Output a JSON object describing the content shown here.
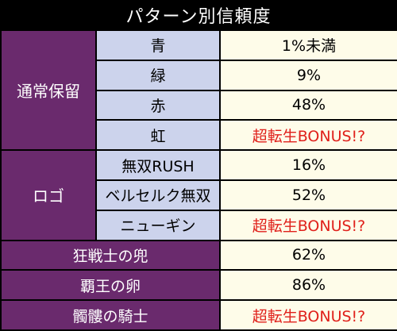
{
  "title": "パターン別信頼度",
  "groups": [
    {
      "label": "通常保留",
      "rows": [
        {
          "label": "青",
          "value": "1%未満",
          "highlight": false
        },
        {
          "label": "緑",
          "value": "9%",
          "highlight": false
        },
        {
          "label": "赤",
          "value": "48%",
          "highlight": false
        },
        {
          "label": "虹",
          "value": "超転生BONUS!?",
          "highlight": true
        }
      ]
    },
    {
      "label": "ロゴ",
      "rows": [
        {
          "label": "無双RUSH",
          "value": "16%",
          "highlight": false
        },
        {
          "label": "ベルセルク無双",
          "value": "52%",
          "highlight": false
        },
        {
          "label": "ニューギン",
          "value": "超転生BONUS!?",
          "highlight": true
        }
      ]
    }
  ],
  "single_rows": [
    {
      "label": "狂戦士の兜",
      "value": "62%",
      "highlight": false
    },
    {
      "label": "覇王の卵",
      "value": "86%",
      "highlight": false
    },
    {
      "label": "髑髏の騎士",
      "value": "超転生BONUS!?",
      "highlight": true
    }
  ],
  "colors": {
    "group_bg": "#6a2a6d",
    "sub_bg": "#ccd3ec",
    "value_bg": "#fefce9",
    "highlight_text": "#e0201b",
    "background": "#000000"
  }
}
